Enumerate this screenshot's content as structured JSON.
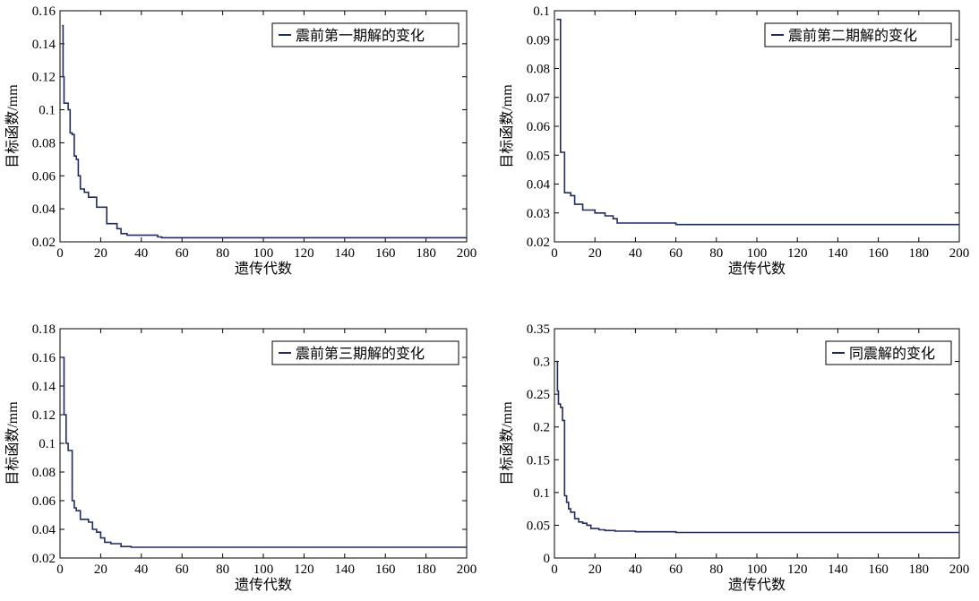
{
  "figure_note": "",
  "chart_data": [
    {
      "type": "line",
      "xlabel": "遗传代数",
      "ylabel": "目标函数/mm",
      "xlim": [
        0,
        200
      ],
      "ylim": [
        0.02,
        0.16
      ],
      "xticks": [
        "0",
        "20",
        "40",
        "60",
        "80",
        "100",
        "120",
        "140",
        "160",
        "180",
        "200"
      ],
      "yticks": [
        "0.02",
        "0.04",
        "0.06",
        "0.08",
        "0.1",
        "0.12",
        "0.14",
        "0.16"
      ],
      "legend": "top-right",
      "grid": false,
      "color": "#1f2a6b",
      "series": [
        {
          "name": "震前第一期解的变化",
          "x": [
            1,
            1.5,
            2,
            4,
            5,
            6,
            7,
            8,
            9,
            10,
            12,
            14,
            18,
            20,
            23,
            25,
            28,
            30,
            33,
            38,
            40,
            48,
            50,
            60,
            80,
            100,
            140,
            160,
            200
          ],
          "y": [
            0.151,
            0.12,
            0.104,
            0.1,
            0.086,
            0.085,
            0.072,
            0.07,
            0.06,
            0.052,
            0.05,
            0.047,
            0.041,
            0.041,
            0.031,
            0.031,
            0.028,
            0.025,
            0.024,
            0.024,
            0.024,
            0.023,
            0.0225,
            0.0225,
            0.0225,
            0.0225,
            0.0225,
            0.0225,
            0.0225
          ]
        }
      ]
    },
    {
      "type": "line",
      "xlabel": "遗传代数",
      "ylabel": "目标函数/mm",
      "xlim": [
        0,
        200
      ],
      "ylim": [
        0.02,
        0.1
      ],
      "xticks": [
        "0",
        "20",
        "40",
        "60",
        "80",
        "100",
        "120",
        "140",
        "160",
        "180",
        "200"
      ],
      "yticks": [
        "0.02",
        "0.03",
        "0.04",
        "0.05",
        "0.06",
        "0.07",
        "0.08",
        "0.09",
        "0.1"
      ],
      "legend": "top-right",
      "grid": false,
      "color": "#1f2a6b",
      "series": [
        {
          "name": "震前第二期解的变化",
          "x": [
            1,
            2,
            3,
            4,
            5,
            6,
            8,
            10,
            12,
            14,
            16,
            20,
            25,
            29,
            31,
            40,
            60,
            80,
            100,
            140,
            160,
            200
          ],
          "y": [
            0.097,
            0.097,
            0.051,
            0.051,
            0.037,
            0.037,
            0.036,
            0.033,
            0.033,
            0.031,
            0.031,
            0.03,
            0.029,
            0.028,
            0.0265,
            0.0265,
            0.026,
            0.026,
            0.026,
            0.026,
            0.026,
            0.026
          ]
        }
      ]
    },
    {
      "type": "line",
      "xlabel": "遗传代数",
      "ylabel": "目标函数/mm",
      "xlim": [
        0,
        200
      ],
      "ylim": [
        0.02,
        0.18
      ],
      "xticks": [
        "0",
        "20",
        "40",
        "60",
        "80",
        "100",
        "120",
        "140",
        "160",
        "180",
        "200"
      ],
      "yticks": [
        "0.02",
        "0.04",
        "0.06",
        "0.08",
        "0.1",
        "0.12",
        "0.14",
        "0.16",
        "0.18"
      ],
      "legend": "top-right",
      "grid": false,
      "color": "#1f2a6b",
      "series": [
        {
          "name": "震前第三期解的变化",
          "x": [
            1,
            2,
            3,
            4,
            5,
            6,
            7,
            8,
            9,
            10,
            12,
            14,
            16,
            18,
            20,
            22,
            25,
            30,
            35,
            40,
            60,
            80,
            100,
            140,
            160,
            200
          ],
          "y": [
            0.16,
            0.12,
            0.1,
            0.095,
            0.095,
            0.06,
            0.055,
            0.053,
            0.053,
            0.047,
            0.047,
            0.045,
            0.04,
            0.038,
            0.034,
            0.031,
            0.03,
            0.028,
            0.0275,
            0.0275,
            0.0275,
            0.0275,
            0.0275,
            0.0275,
            0.0275,
            0.0275
          ]
        }
      ]
    },
    {
      "type": "line",
      "xlabel": "遗传代数",
      "ylabel": "目标函数/mm",
      "xlim": [
        0,
        200
      ],
      "ylim": [
        0,
        0.35
      ],
      "xticks": [
        "0",
        "20",
        "40",
        "60",
        "80",
        "100",
        "120",
        "140",
        "160",
        "180",
        "200"
      ],
      "yticks": [
        "0",
        "0.05",
        "0.1",
        "0.15",
        "0.2",
        "0.25",
        "0.3",
        "0.35"
      ],
      "legend": "top-right",
      "grid": false,
      "color": "#1f2a6b",
      "series": [
        {
          "name": "同震解的变化",
          "x": [
            1,
            1.5,
            2,
            3,
            4,
            5,
            6,
            7,
            8,
            10,
            12,
            14,
            16,
            18,
            20,
            22,
            25,
            30,
            40,
            60,
            80,
            100,
            140,
            160,
            200
          ],
          "y": [
            0.3,
            0.255,
            0.235,
            0.23,
            0.21,
            0.095,
            0.085,
            0.075,
            0.07,
            0.06,
            0.055,
            0.053,
            0.05,
            0.045,
            0.045,
            0.043,
            0.042,
            0.041,
            0.04,
            0.039,
            0.039,
            0.039,
            0.039,
            0.039,
            0.039
          ]
        }
      ]
    }
  ]
}
